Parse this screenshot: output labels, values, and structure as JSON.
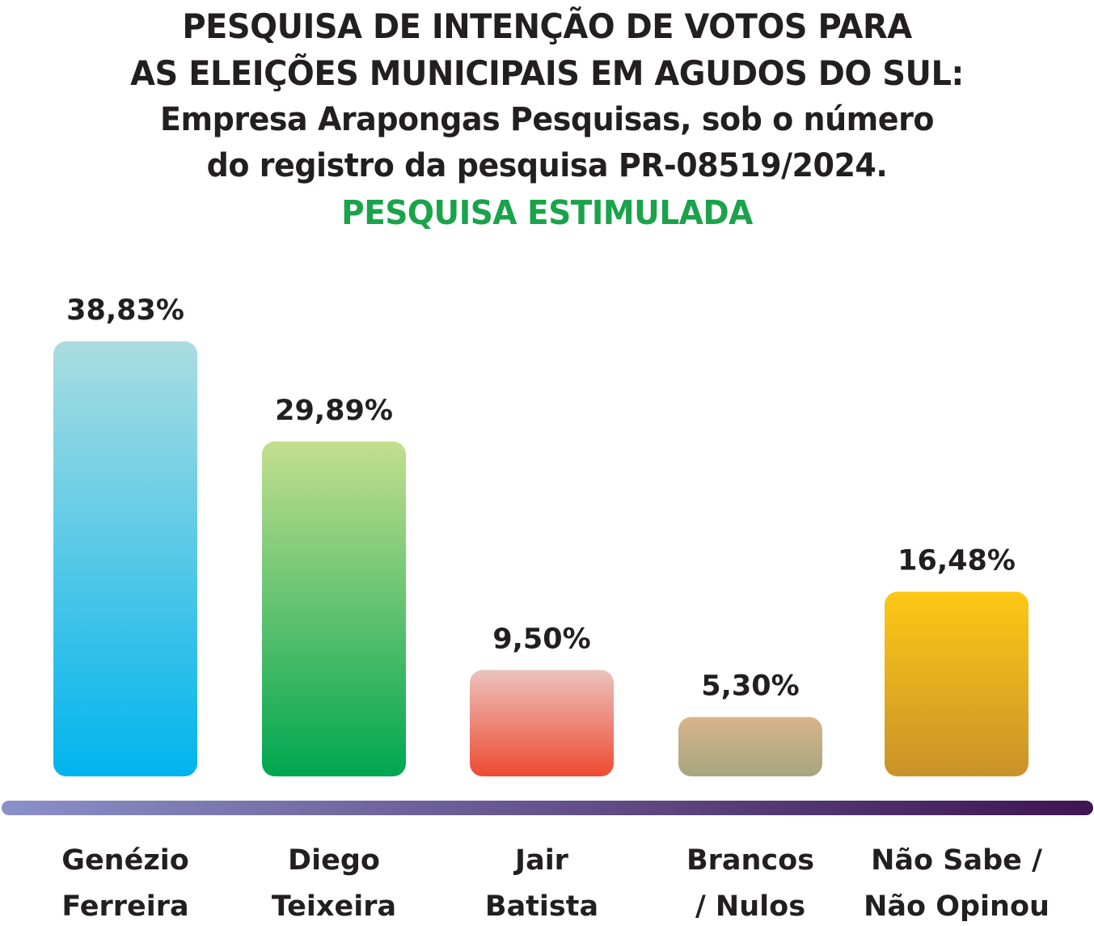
{
  "header": {
    "title_lines": [
      "PESQUISA DE INTENÇÃO DE VOTOS PARA",
      "AS ELEIÇÕES MUNICIPAIS EM AGUDOS DO SUL:"
    ],
    "subtitle_lines": [
      "Empresa Arapongas Pesquisas, sob o número",
      "do registro da pesquisa PR-08519/2024."
    ],
    "tag": "PESQUISA ESTIMULADA",
    "tag_color": "#1aa34a"
  },
  "chart_data": {
    "type": "bar",
    "title": "PESQUISA DE INTENÇÃO DE VOTOS PARA AS ELEIÇÕES MUNICIPAIS EM AGUDOS DO SUL:",
    "categories": [
      [
        "Genézio",
        "Ferreira"
      ],
      [
        "Diego",
        "Teixeira"
      ],
      [
        "Jair",
        "Batista"
      ],
      [
        "Brancos",
        "/ Nulos"
      ],
      [
        "Não Sabe /",
        "Não Opinou"
      ]
    ],
    "values": [
      38.83,
      29.89,
      9.5,
      5.3,
      16.48
    ],
    "value_labels": [
      "38,83%",
      "29,89%",
      "9,50%",
      "5,30%",
      "16,48%"
    ],
    "unit": "%",
    "ylim": [
      0,
      40
    ],
    "grid": false,
    "bar_colors": [
      [
        "#abdde0",
        "#00b4ee"
      ],
      [
        "#c3df8f",
        "#00a651"
      ],
      [
        "#ebc3bc",
        "#ee4a32"
      ],
      [
        "#d9b48a",
        "#a6a680"
      ],
      [
        "#fec815",
        "#c9922a"
      ]
    ],
    "baseline_gradient": [
      "#8b90c8",
      "#3e1551"
    ]
  }
}
